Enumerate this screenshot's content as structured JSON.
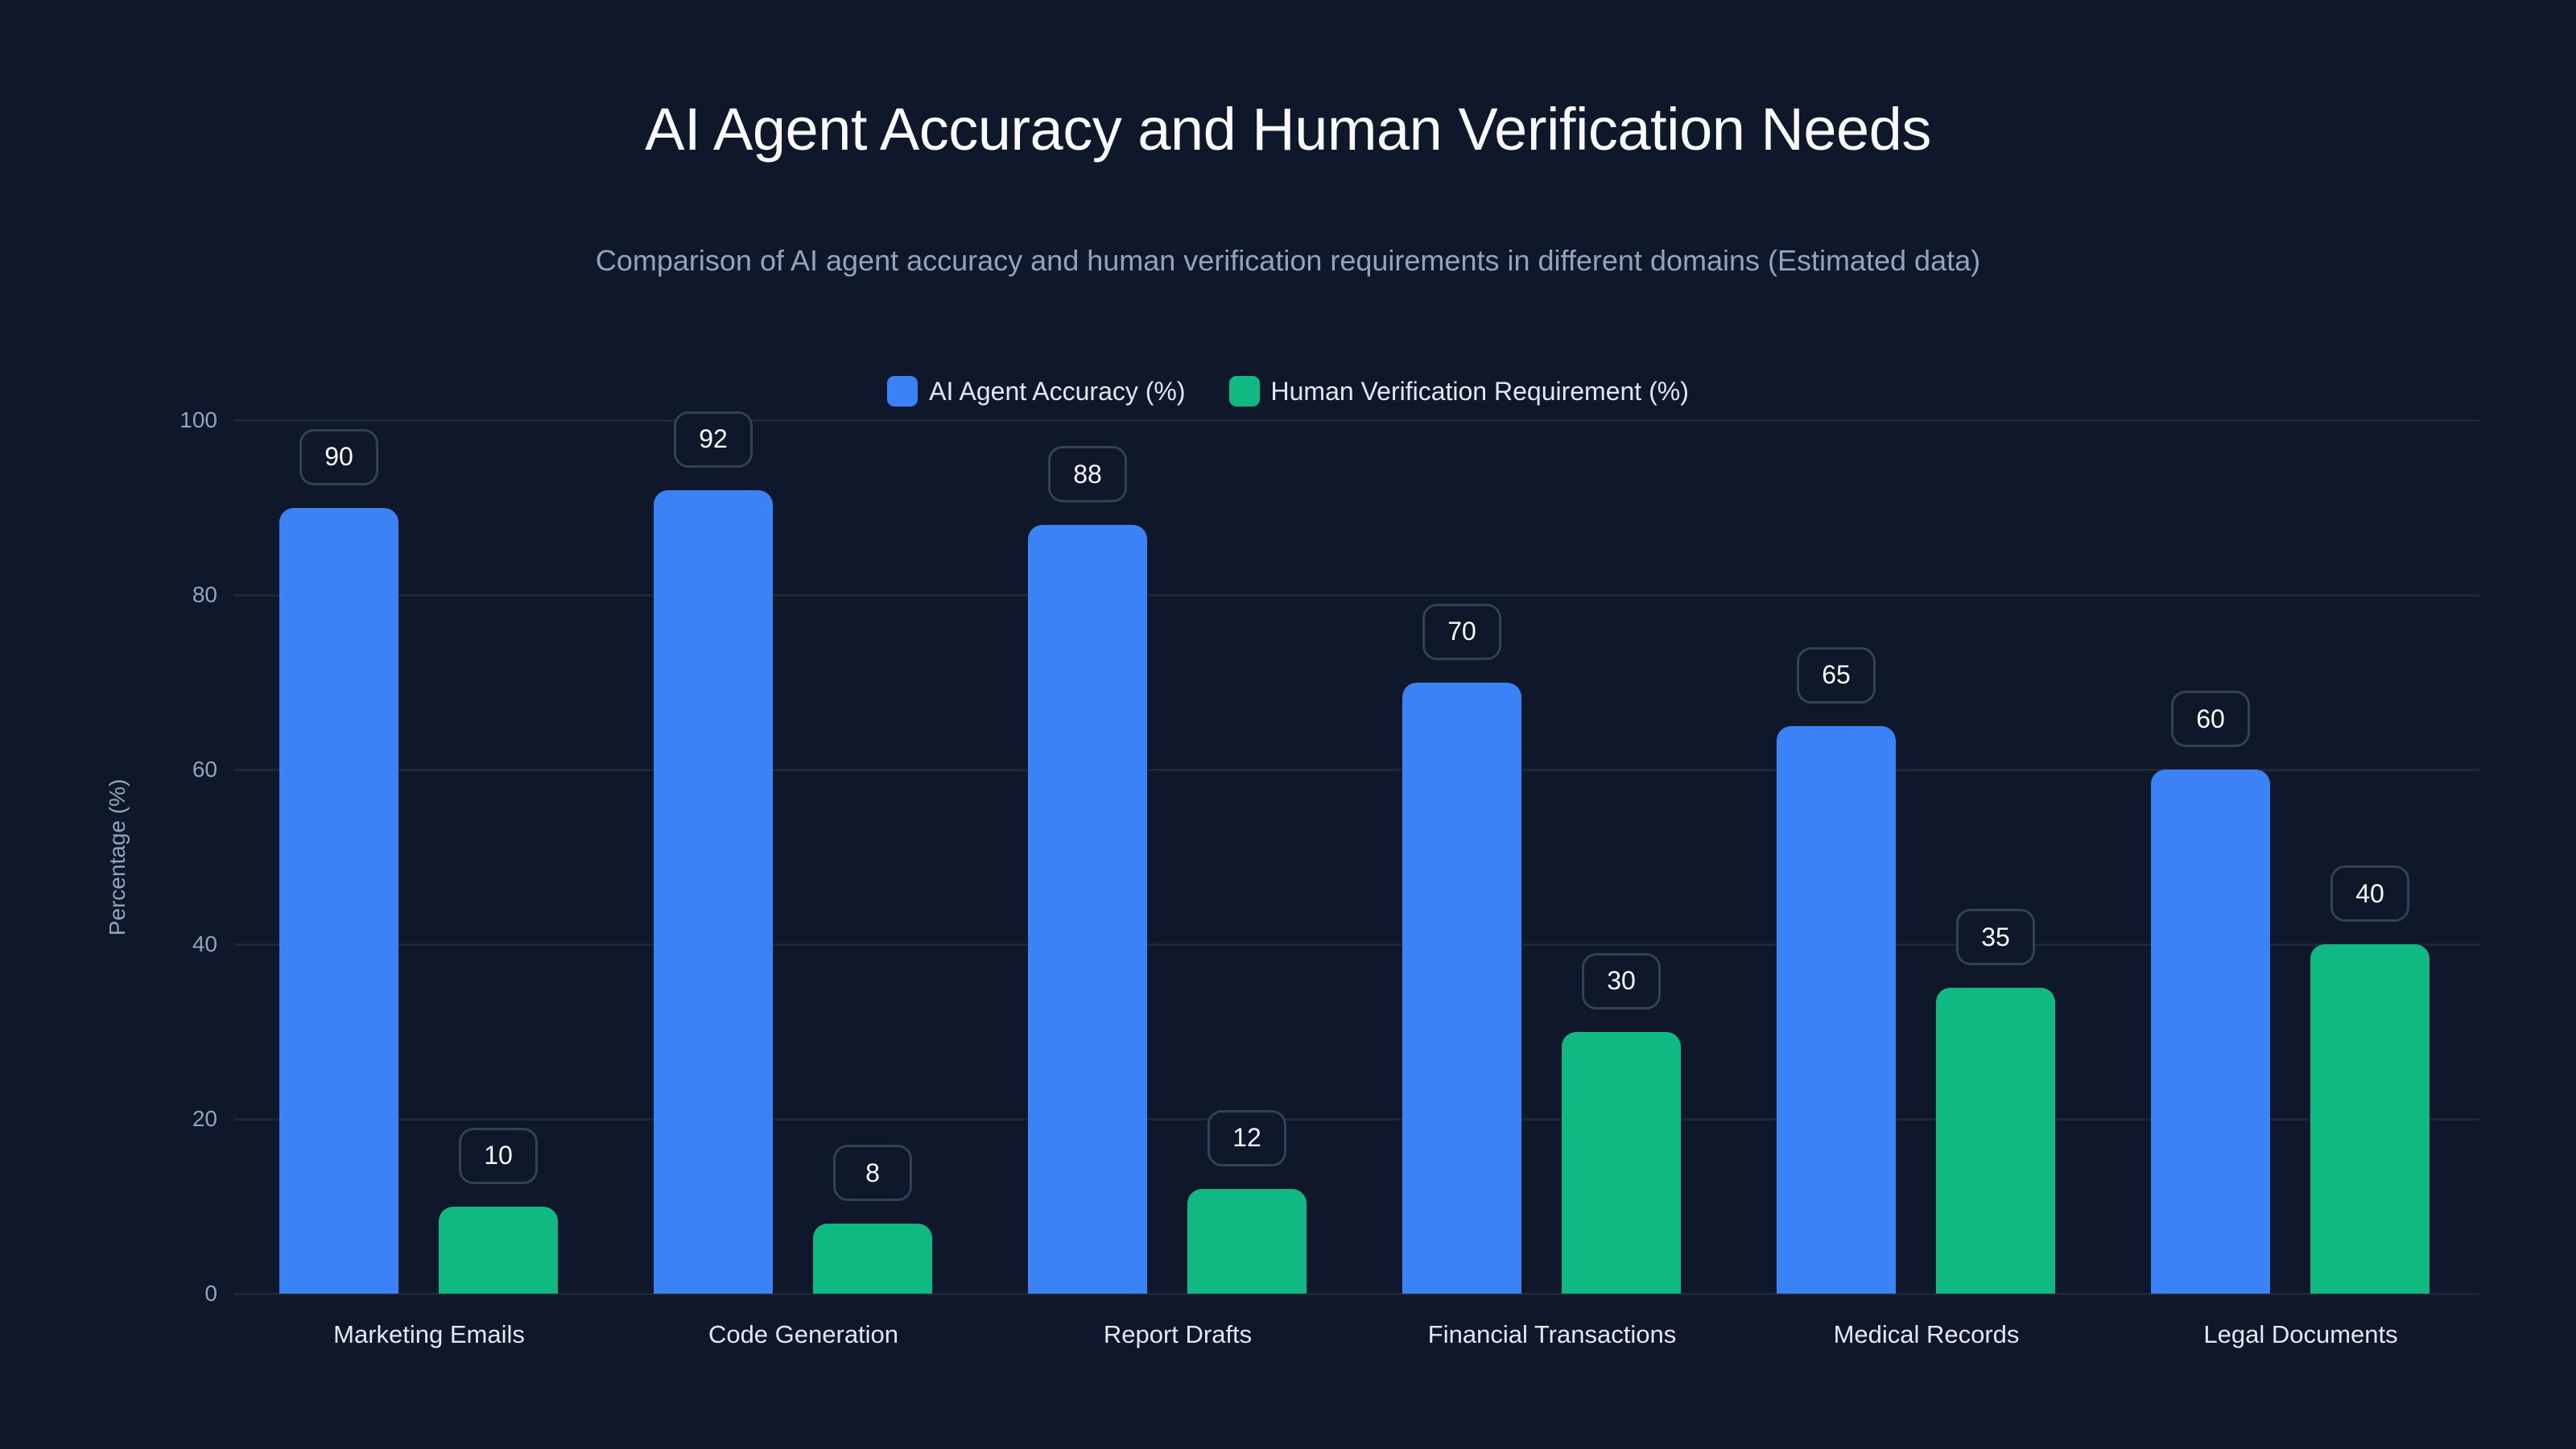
{
  "header": {
    "title": "AI Agent Accuracy and Human Verification Needs",
    "subtitle": "Comparison of AI agent accuracy and human verification requirements in different domains (Estimated data)"
  },
  "legend": {
    "items": [
      {
        "label": "AI Agent Accuracy (%)",
        "color": "#3b82f6"
      },
      {
        "label": "Human Verification Requirement (%)",
        "color": "#10b981"
      }
    ]
  },
  "axes": {
    "ylabel": "Percentage (%)",
    "yticks": [
      "0",
      "20",
      "40",
      "60",
      "80",
      "100"
    ]
  },
  "colors": {
    "background": "#0f172a",
    "accuracy": "#3b82f6",
    "verification": "#10b981",
    "grid": "#1e2738",
    "label_border": "#334155"
  },
  "chart_data": {
    "type": "bar",
    "title": "AI Agent Accuracy and Human Verification Needs",
    "subtitle": "Comparison of AI agent accuracy and human verification requirements in different domains (Estimated data)",
    "categories": [
      "Marketing Emails",
      "Code Generation",
      "Report Drafts",
      "Financial Transactions",
      "Medical Records",
      "Legal Documents"
    ],
    "series": [
      {
        "name": "AI Agent Accuracy (%)",
        "color": "#3b82f6",
        "values": [
          90,
          92,
          88,
          70,
          65,
          60
        ]
      },
      {
        "name": "Human Verification Requirement (%)",
        "color": "#10b981",
        "values": [
          10,
          8,
          12,
          30,
          35,
          40
        ]
      }
    ],
    "xlabel": "",
    "ylabel": "Percentage (%)",
    "ylim": [
      0,
      100
    ],
    "yticks": [
      0,
      20,
      40,
      60,
      80,
      100
    ],
    "grid": true,
    "legend_position": "top",
    "data_labels": true
  }
}
